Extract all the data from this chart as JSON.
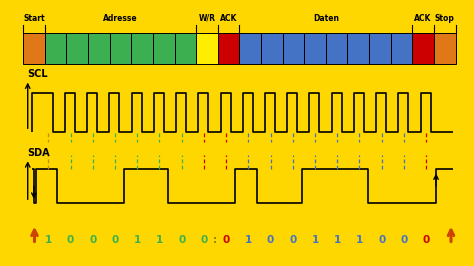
{
  "bg_color": "#FFD700",
  "segments": [
    {
      "label": "Start",
      "color": "#E07818",
      "count": 1
    },
    {
      "label": "Adresse",
      "color": "#3CB050",
      "count": 7
    },
    {
      "label": "W/R",
      "color": "#FFEE00",
      "count": 1
    },
    {
      "label": "ACK",
      "color": "#CC0000",
      "count": 1
    },
    {
      "label": "Daten",
      "color": "#4472C4",
      "count": 8
    },
    {
      "label": "ACK",
      "color": "#CC0000",
      "count": 1
    },
    {
      "label": "Stop",
      "color": "#E07818",
      "count": 1
    }
  ],
  "scl_label": "SCL",
  "sda_label": "SDA",
  "bits": [
    "1",
    "0",
    "0",
    "0",
    "1",
    "1",
    "0",
    "0",
    "0",
    "1",
    "0",
    "0",
    "1",
    "1",
    "1",
    "0",
    "0",
    "0"
  ],
  "bit_colors": [
    "#3CB050",
    "#3CB050",
    "#3CB050",
    "#3CB050",
    "#3CB050",
    "#3CB050",
    "#3CB050",
    "#3CB050",
    "#CC0000",
    "#4472C4",
    "#4472C4",
    "#4472C4",
    "#4472C4",
    "#4472C4",
    "#4472C4",
    "#4472C4",
    "#4472C4",
    "#CC0000"
  ],
  "sda_vals": [
    1,
    0,
    0,
    0,
    1,
    1,
    0,
    0,
    0,
    1,
    0,
    0,
    1,
    1,
    1,
    0,
    0,
    0
  ],
  "n_clocks": 18,
  "vline_colors": [
    "#CC8800",
    "#3CB050",
    "#3CB050",
    "#3CB050",
    "#3CB050",
    "#3CB050",
    "#3CB050",
    "#CC0000",
    "#CC0000",
    "#4472C4",
    "#4472C4",
    "#4472C4",
    "#4472C4",
    "#4472C4",
    "#4472C4",
    "#4472C4",
    "#4472C4",
    "#CC0000"
  ],
  "arrow_color": "#CC4400"
}
